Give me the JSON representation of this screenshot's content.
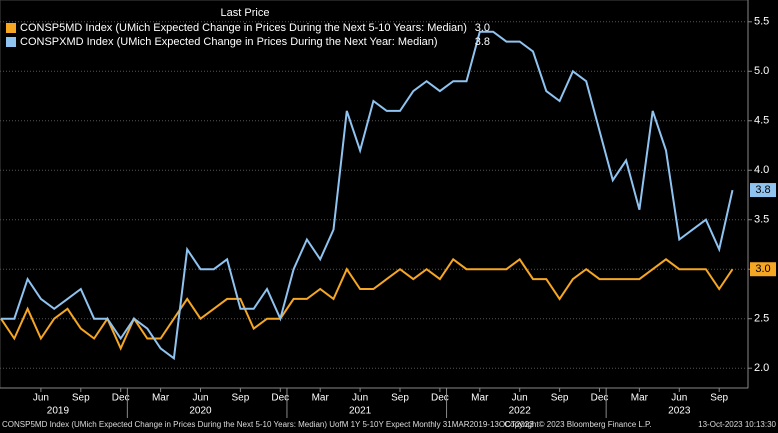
{
  "chart_data": {
    "type": "line",
    "legend_title": "Last Price",
    "categories": [
      null,
      null,
      null,
      "Jun",
      null,
      null,
      "Sep",
      null,
      null,
      "Dec",
      null,
      null,
      "Mar",
      null,
      null,
      "Jun",
      null,
      null,
      "Sep",
      null,
      null,
      "Dec",
      null,
      null,
      "Mar",
      null,
      null,
      "Jun",
      null,
      null,
      "Sep",
      null,
      null,
      "Dec",
      null,
      null,
      "Mar",
      null,
      null,
      "Jun",
      null,
      null,
      "Sep",
      null,
      null,
      "Dec",
      null,
      null,
      "Mar",
      null,
      null,
      "Jun",
      null,
      null,
      "Sep",
      null
    ],
    "year_labels": [
      "2019",
      "2020",
      "2021",
      "2022",
      "2023"
    ],
    "series": [
      {
        "name": "CONSP5MD Index (UMich Expected Change in Prices During the Next 5-10 Years: Median)",
        "color": "#f5a623",
        "last_label": "3.0",
        "values": [
          2.5,
          2.3,
          2.6,
          2.3,
          2.5,
          2.6,
          2.4,
          2.3,
          2.5,
          2.2,
          2.5,
          2.3,
          2.3,
          2.5,
          2.7,
          2.5,
          2.6,
          2.7,
          2.7,
          2.4,
          2.5,
          2.5,
          2.7,
          2.7,
          2.8,
          2.7,
          3.0,
          2.8,
          2.8,
          2.9,
          3.0,
          2.9,
          3.0,
          2.9,
          3.1,
          3.0,
          3.0,
          3.0,
          3.0,
          3.1,
          2.9,
          2.9,
          2.7,
          2.9,
          3.0,
          2.9,
          2.9,
          2.9,
          2.9,
          3.0,
          3.1,
          3.0,
          3.0,
          3.0,
          2.8,
          3.0
        ]
      },
      {
        "name": "CONSPXMD Index (UMich Expected Change in Prices During the Next Year: Median)",
        "color": "#8fc3f0",
        "last_label": "3.8",
        "values": [
          2.5,
          2.5,
          2.9,
          2.7,
          2.6,
          2.7,
          2.8,
          2.5,
          2.5,
          2.3,
          2.5,
          2.4,
          2.2,
          2.1,
          3.2,
          3.0,
          3.0,
          3.1,
          2.6,
          2.6,
          2.8,
          2.5,
          3.0,
          3.3,
          3.1,
          3.4,
          4.6,
          4.2,
          4.7,
          4.6,
          4.6,
          4.8,
          4.9,
          4.8,
          4.9,
          4.9,
          5.4,
          5.4,
          5.3,
          5.3,
          5.2,
          4.8,
          4.7,
          5.0,
          4.9,
          4.4,
          3.9,
          4.1,
          3.6,
          4.6,
          4.2,
          3.3,
          3.4,
          3.5,
          3.2,
          3.8
        ]
      }
    ],
    "ylim": [
      1.8,
      5.7
    ],
    "yticks": [
      {
        "value": 2,
        "label": "2.0"
      },
      {
        "value": 2.5,
        "label": "2.5"
      },
      {
        "value": 3,
        "label": "3.0"
      },
      {
        "value": 3.5,
        "label": "3.5"
      },
      {
        "value": 4,
        "label": "4.0"
      },
      {
        "value": 4.5,
        "label": "4.5"
      },
      {
        "value": 5,
        "label": "5.0"
      },
      {
        "value": 5.5,
        "label": "5.5"
      }
    ],
    "grid": true,
    "legend": "top-left",
    "footer_left": "CONSP5MD Index (UMich Expected Change in Prices During the Next 5-10 Years: Median) UofM 1Y 5-10Y Expect  Monthly 31MAR2019-13OCT2023",
    "footer_center": "Copyright© 2023 Bloomberg Finance L.P.",
    "footer_right": "13-Oct-2023 10:13:30"
  }
}
